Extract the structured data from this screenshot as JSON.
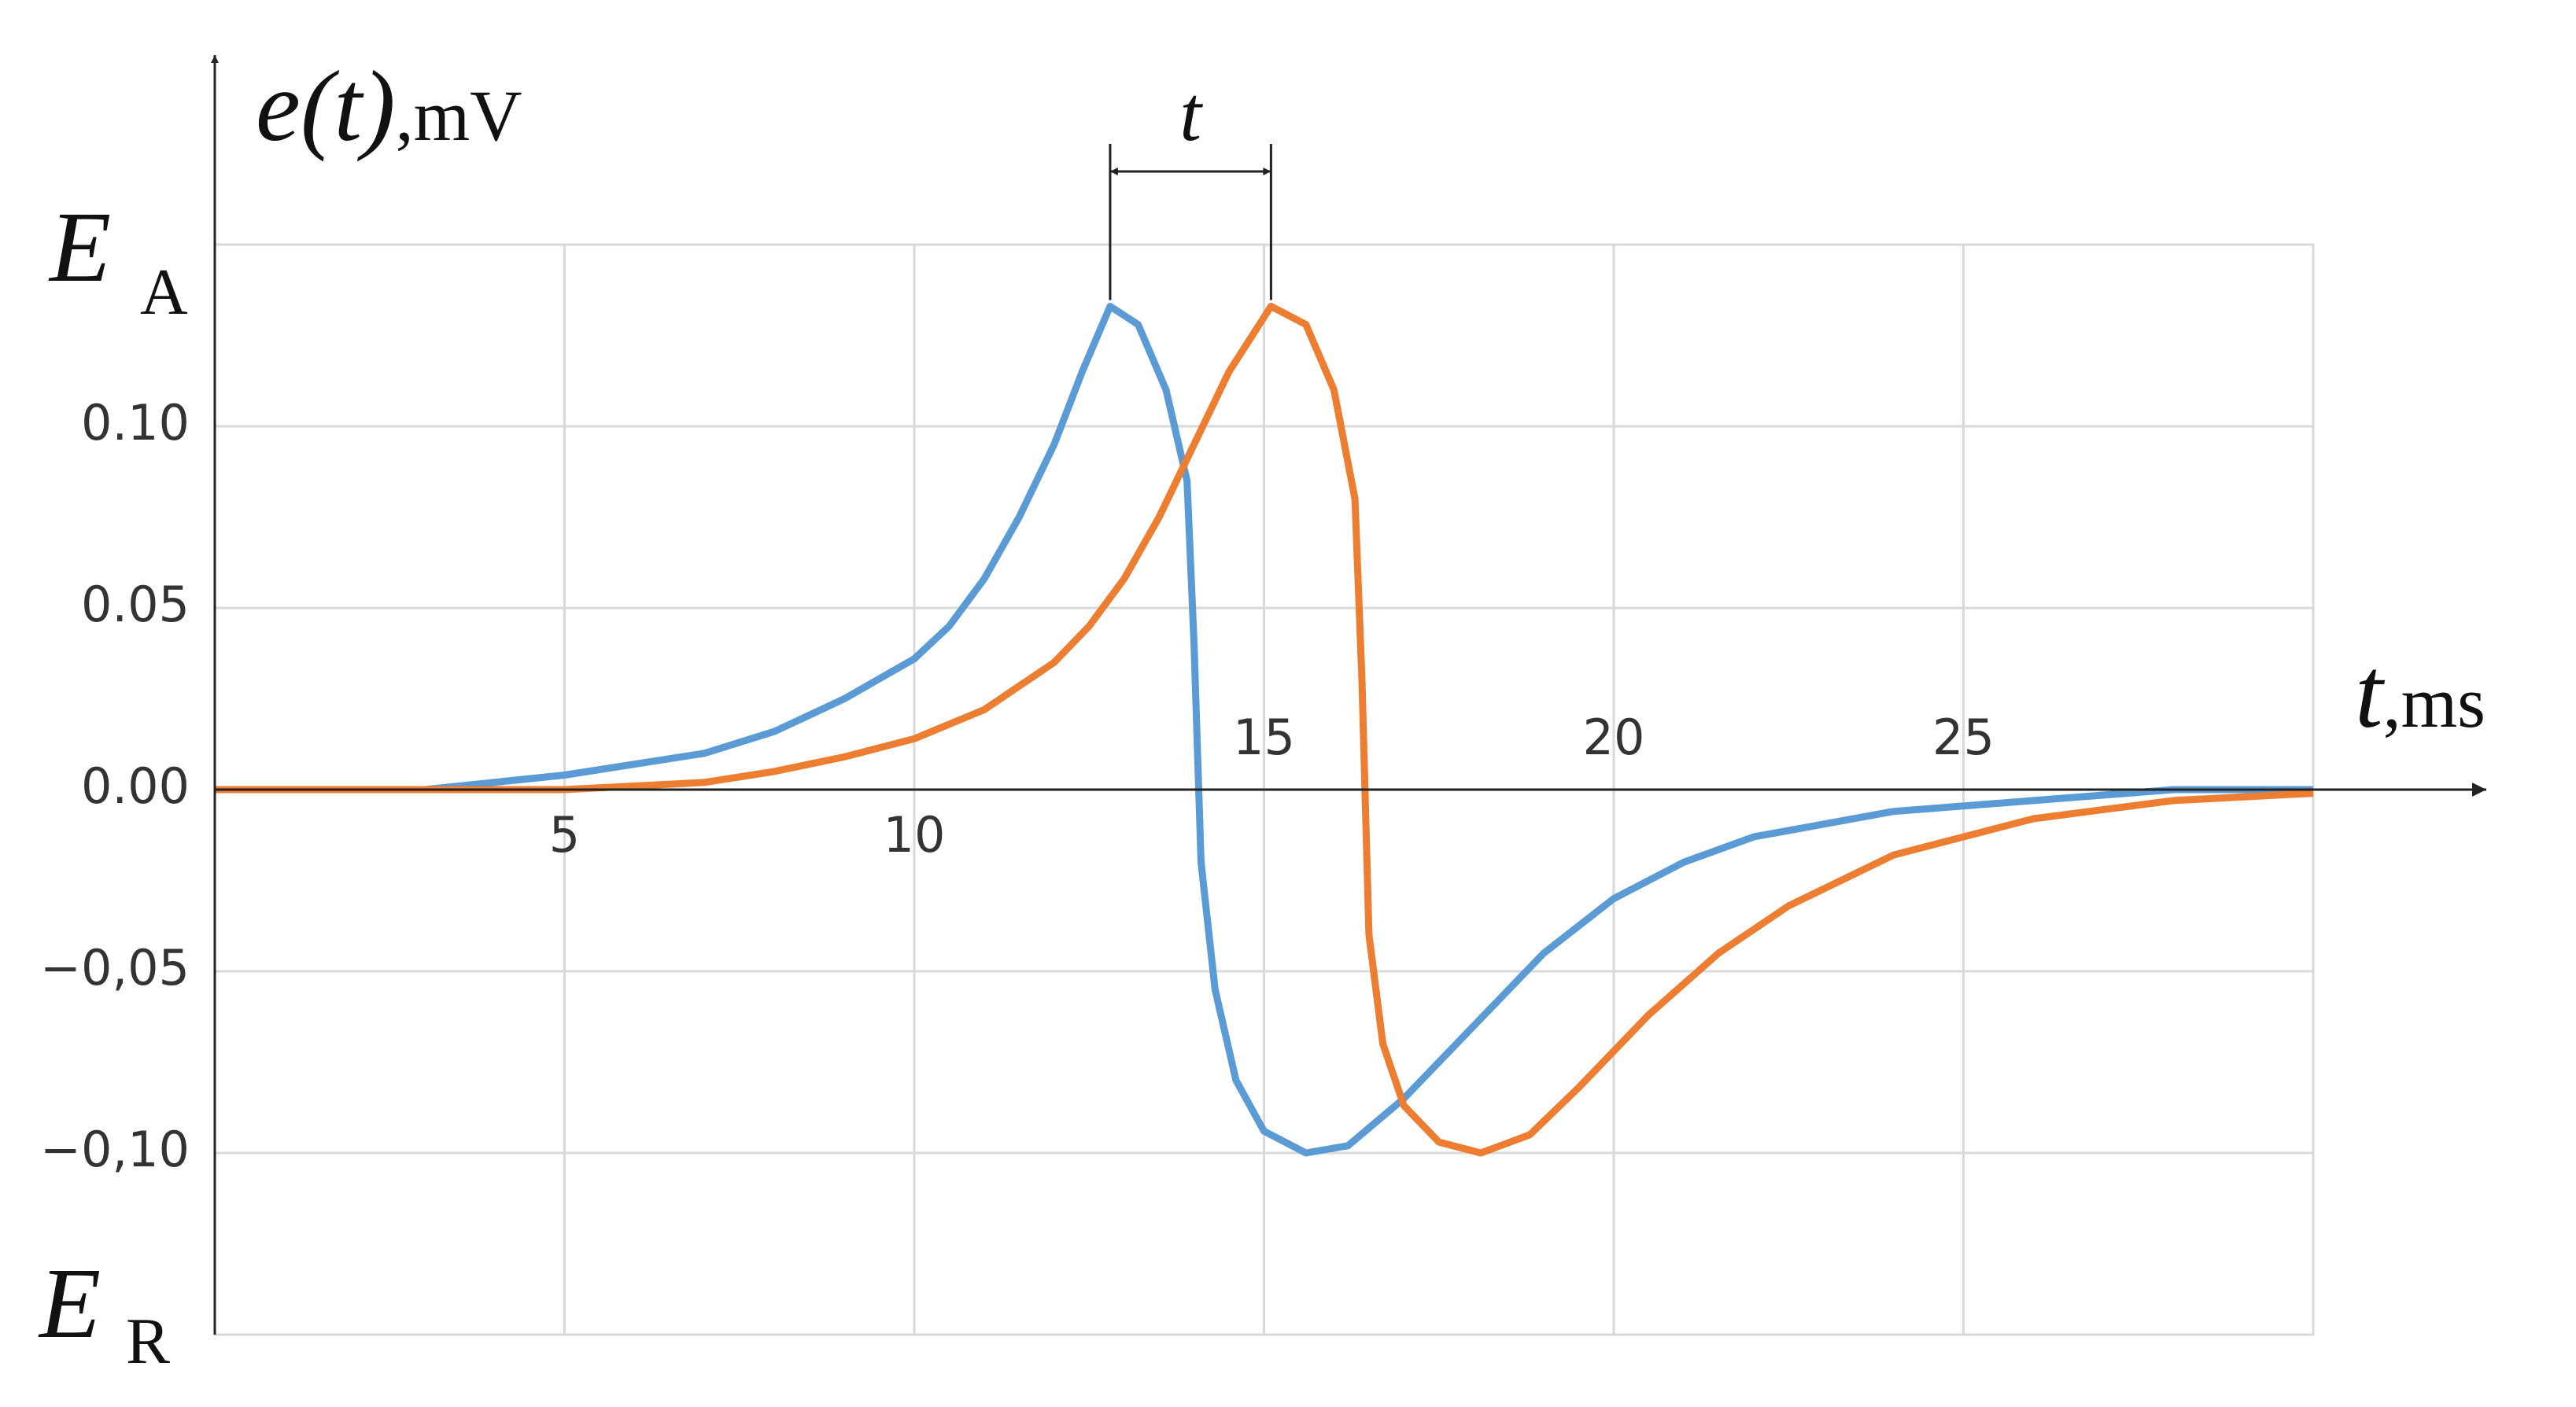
{
  "chart_data": {
    "type": "line",
    "ylabel": {
      "symbol": "e(t)",
      "unit": ",mV"
    },
    "xlabel": {
      "symbol": "t",
      "unit": ",ms"
    },
    "annotations": {
      "top": {
        "main": "E",
        "sub": "A"
      },
      "bottom": {
        "main": "E",
        "sub": "R"
      },
      "shift": "t"
    },
    "xlim": [
      0,
      30
    ],
    "ylim": [
      -0.15,
      0.15
    ],
    "xticks": [
      5,
      10,
      15,
      20,
      25
    ],
    "yticks": [
      {
        "value": 0.1,
        "label": "0.10"
      },
      0.05,
      {
        "value": 0,
        "label": "0.00"
      },
      {
        "value": -0.05,
        "label": "−0,05"
      },
      {
        "value": -0.1,
        "label": "−0,10"
      }
    ],
    "grid": true,
    "series": [
      {
        "color": "#5b9bd5",
        "x": [
          0,
          3,
          5,
          7,
          8,
          9,
          10,
          10.5,
          11,
          11.5,
          12,
          12.4,
          12.8,
          13.2,
          13.6,
          13.9,
          14.0,
          14.1,
          14.3,
          14.6,
          15.0,
          15.6,
          16.2,
          17.0,
          18.0,
          19.0,
          20.0,
          21.0,
          22.0,
          24.0,
          26.0,
          28.0,
          30.0
        ],
        "values": [
          0,
          0,
          0.004,
          0.01,
          0.016,
          0.025,
          0.036,
          0.045,
          0.058,
          0.075,
          0.095,
          0.115,
          0.133,
          0.128,
          0.11,
          0.085,
          0.04,
          -0.02,
          -0.055,
          -0.08,
          -0.094,
          -0.1,
          -0.098,
          -0.085,
          -0.065,
          -0.045,
          -0.03,
          -0.02,
          -0.013,
          -0.006,
          -0.003,
          0,
          0
        ]
      },
      {
        "color": "#ed7d31",
        "x": [
          0,
          5,
          7,
          8,
          9,
          10,
          11,
          12,
          12.5,
          13,
          13.5,
          14,
          14.5,
          15.1,
          15.6,
          16.0,
          16.3,
          16.4,
          16.5,
          16.7,
          17.0,
          17.5,
          18.1,
          18.8,
          19.5,
          20.5,
          21.5,
          22.5,
          24,
          26,
          28,
          30
        ],
        "values": [
          0,
          0,
          0.002,
          0.005,
          0.009,
          0.014,
          0.022,
          0.035,
          0.045,
          0.058,
          0.075,
          0.095,
          0.115,
          0.133,
          0.128,
          0.11,
          0.08,
          0.03,
          -0.04,
          -0.07,
          -0.087,
          -0.097,
          -0.1,
          -0.095,
          -0.082,
          -0.062,
          -0.045,
          -0.032,
          -0.018,
          -0.008,
          -0.003,
          -0.001
        ]
      }
    ]
  }
}
